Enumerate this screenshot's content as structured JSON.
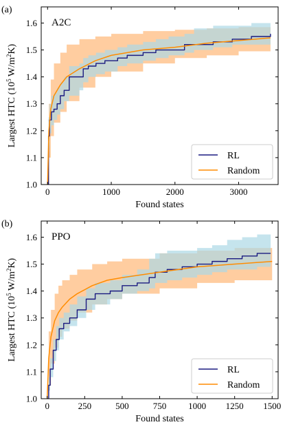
{
  "chart_data": [
    {
      "type": "line",
      "panel_label": "(a)",
      "panel_title": "A2C",
      "xlabel": "Found states",
      "ylabel": "Largest HTC (10^5 W/m^2K)",
      "ylabel_parts": {
        "pre": "Largest HTC (10",
        "exp1": "5",
        "mid": " W/m",
        "exp2": "2",
        "post": "K)"
      },
      "xlim": [
        -100,
        3620
      ],
      "ylim": [
        1.0,
        1.66
      ],
      "xticks": [
        0,
        1000,
        2000,
        3000
      ],
      "xtick_labels": [
        "0",
        "1000",
        "2000",
        "3000"
      ],
      "yticks": [
        1.0,
        1.1,
        1.2,
        1.3,
        1.4,
        1.5,
        1.6
      ],
      "ytick_labels": [
        "1.0",
        "1.1",
        "1.2",
        "1.3",
        "1.4",
        "1.5",
        "1.6"
      ],
      "legend": {
        "position": "bottom-right",
        "entries": [
          "RL",
          "Random"
        ]
      },
      "series": [
        {
          "name": "RL",
          "color": "#1a1a80",
          "band_color": "#add8e6",
          "x": [
            0,
            15,
            30,
            60,
            100,
            150,
            200,
            260,
            340,
            500,
            560,
            640,
            760,
            900,
            1100,
            1250,
            1500,
            1700,
            1900,
            2150,
            2300,
            2600,
            2900,
            3200,
            3500
          ],
          "y": [
            1.0,
            1.18,
            1.24,
            1.27,
            1.28,
            1.3,
            1.33,
            1.35,
            1.4,
            1.4,
            1.43,
            1.44,
            1.45,
            1.46,
            1.47,
            1.48,
            1.49,
            1.5,
            1.5,
            1.52,
            1.52,
            1.53,
            1.54,
            1.55,
            1.56
          ],
          "lower": [
            1.0,
            1.13,
            1.19,
            1.22,
            1.24,
            1.26,
            1.28,
            1.31,
            1.33,
            1.35,
            1.38,
            1.4,
            1.41,
            1.42,
            1.44,
            1.45,
            1.46,
            1.47,
            1.48,
            1.49,
            1.5,
            1.51,
            1.52,
            1.52,
            1.53
          ],
          "upper": [
            1.0,
            1.25,
            1.3,
            1.33,
            1.34,
            1.36,
            1.38,
            1.4,
            1.44,
            1.45,
            1.47,
            1.48,
            1.49,
            1.5,
            1.51,
            1.52,
            1.53,
            1.54,
            1.55,
            1.56,
            1.58,
            1.59,
            1.59,
            1.6,
            1.6
          ]
        },
        {
          "name": "Random",
          "color": "#ff8c00",
          "band_color": "#ffc48f",
          "x": [
            0,
            20,
            50,
            100,
            200,
            300,
            500,
            750,
            1000,
            1500,
            2000,
            2500,
            3000,
            3500
          ],
          "y": [
            1.0,
            1.2,
            1.28,
            1.33,
            1.37,
            1.4,
            1.43,
            1.46,
            1.48,
            1.5,
            1.51,
            1.525,
            1.535,
            1.545
          ],
          "lower": [
            1.0,
            1.1,
            1.18,
            1.23,
            1.27,
            1.31,
            1.36,
            1.4,
            1.42,
            1.45,
            1.47,
            1.48,
            1.495,
            1.51
          ],
          "upper": [
            1.0,
            1.3,
            1.39,
            1.45,
            1.49,
            1.52,
            1.54,
            1.55,
            1.56,
            1.57,
            1.575,
            1.58,
            1.585,
            1.59
          ]
        }
      ]
    },
    {
      "type": "line",
      "panel_label": "(b)",
      "panel_title": "PPO",
      "xlabel": "Found states",
      "ylabel": "Largest HTC (10^5 W/m^2K)",
      "ylabel_parts": {
        "pre": "Largest HTC (10",
        "exp1": "5",
        "mid": " W/m",
        "exp2": "2",
        "post": "K)"
      },
      "xlim": [
        -40,
        1540
      ],
      "ylim": [
        1.0,
        1.66
      ],
      "xticks": [
        0,
        250,
        500,
        750,
        1000,
        1250,
        1500
      ],
      "xtick_labels": [
        "0",
        "250",
        "500",
        "750",
        "1000",
        "1250",
        "1500"
      ],
      "yticks": [
        1.0,
        1.1,
        1.2,
        1.3,
        1.4,
        1.5,
        1.6
      ],
      "ytick_labels": [
        "1.0",
        "1.1",
        "1.2",
        "1.3",
        "1.4",
        "1.5",
        "1.6"
      ],
      "legend": {
        "position": "bottom-right",
        "entries": [
          "RL",
          "Random"
        ]
      },
      "series": [
        {
          "name": "RL",
          "color": "#1a1a80",
          "band_color": "#add8e6",
          "x": [
            0,
            10,
            20,
            40,
            60,
            80,
            110,
            150,
            200,
            260,
            320,
            420,
            500,
            600,
            680,
            720,
            800,
            900,
            1000,
            1100,
            1200,
            1300,
            1400,
            1490
          ],
          "y": [
            1.0,
            1.05,
            1.11,
            1.18,
            1.22,
            1.26,
            1.28,
            1.3,
            1.33,
            1.37,
            1.39,
            1.4,
            1.42,
            1.43,
            1.45,
            1.47,
            1.48,
            1.49,
            1.5,
            1.51,
            1.52,
            1.53,
            1.54,
            1.54
          ],
          "lower": [
            1.0,
            1.03,
            1.08,
            1.14,
            1.18,
            1.22,
            1.25,
            1.27,
            1.3,
            1.33,
            1.35,
            1.37,
            1.39,
            1.4,
            1.41,
            1.43,
            1.44,
            1.45,
            1.46,
            1.47,
            1.48,
            1.48,
            1.49,
            1.49
          ],
          "upper": [
            1.0,
            1.08,
            1.15,
            1.22,
            1.27,
            1.3,
            1.32,
            1.35,
            1.38,
            1.41,
            1.43,
            1.44,
            1.46,
            1.48,
            1.52,
            1.54,
            1.55,
            1.55,
            1.56,
            1.57,
            1.59,
            1.6,
            1.61,
            1.61
          ]
        },
        {
          "name": "Random",
          "color": "#ff8c00",
          "band_color": "#ffc48f",
          "x": [
            0,
            10,
            25,
            50,
            75,
            100,
            150,
            200,
            300,
            400,
            500,
            750,
            1000,
            1250,
            1500
          ],
          "y": [
            1.0,
            1.15,
            1.23,
            1.29,
            1.32,
            1.34,
            1.37,
            1.39,
            1.42,
            1.44,
            1.45,
            1.47,
            1.49,
            1.5,
            1.51
          ],
          "lower": [
            1.0,
            1.05,
            1.13,
            1.19,
            1.23,
            1.26,
            1.29,
            1.32,
            1.35,
            1.37,
            1.39,
            1.41,
            1.43,
            1.44,
            1.45
          ],
          "upper": [
            1.0,
            1.25,
            1.33,
            1.39,
            1.42,
            1.44,
            1.46,
            1.48,
            1.5,
            1.51,
            1.52,
            1.54,
            1.55,
            1.56,
            1.565
          ]
        }
      ]
    }
  ]
}
